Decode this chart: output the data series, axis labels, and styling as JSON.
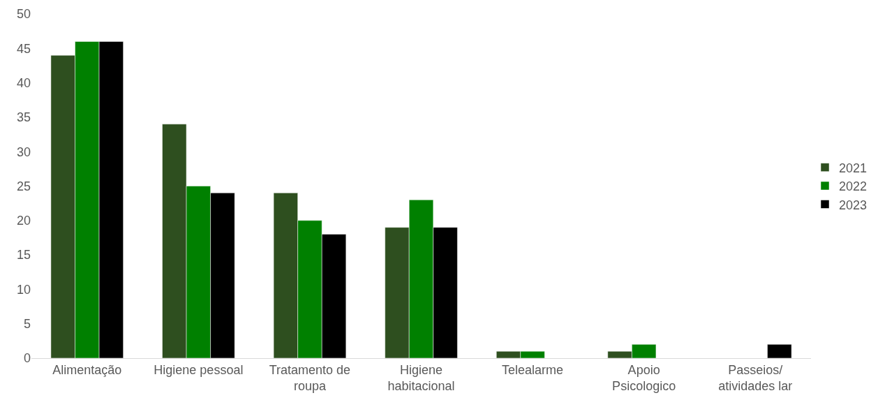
{
  "chart_data": {
    "type": "bar",
    "categories": [
      "Alimentação",
      "Higiene pessoal",
      "Tratamento de roupa",
      "Higiene habitacional",
      "Telealarme",
      "Apoio Psicologico",
      "Passeios/ atividades lar"
    ],
    "series": [
      {
        "name": "2021",
        "color": "#2e4f1f",
        "values": [
          44,
          34,
          24,
          19,
          1,
          1,
          null
        ]
      },
      {
        "name": "2022",
        "color": "#008000",
        "values": [
          46,
          25,
          20,
          23,
          1,
          2,
          null
        ]
      },
      {
        "name": "2023",
        "color": "#000000",
        "values": [
          46,
          24,
          18,
          19,
          null,
          null,
          2
        ]
      }
    ],
    "ylim": [
      0,
      50
    ],
    "yticks": [
      0,
      5,
      10,
      15,
      20,
      25,
      30,
      35,
      40,
      45,
      50
    ],
    "grid": false,
    "legend": "right"
  }
}
